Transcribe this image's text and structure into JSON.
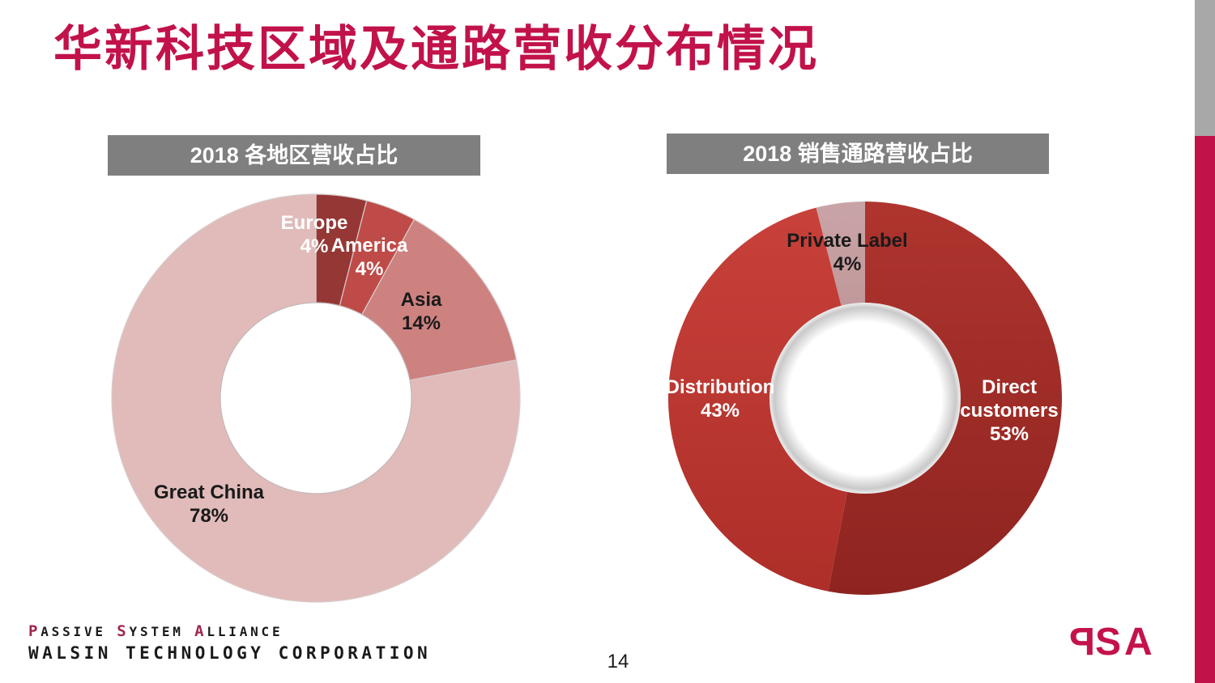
{
  "slide": {
    "title": "华新科技区域及通路营收分布情况",
    "page_number": "14",
    "accent_color": "#C2124A",
    "header_bar_color": "#7F7F7F",
    "edge_stripe_gray": "#A8A8A8",
    "edge_stripe_red": "#C2124A"
  },
  "brand": {
    "line1_parts": [
      {
        "t": "P"
      },
      {
        "t": "ASSIVE "
      },
      {
        "t": "S"
      },
      {
        "t": "YSTEM "
      },
      {
        "t": "A"
      },
      {
        "t": "LLIANCE"
      }
    ],
    "line2": "WALSIN TECHNOLOGY CORPORATION",
    "logo_letters": [
      "P",
      "S",
      "A"
    ],
    "logo_color": "#C4134B",
    "initial_color": "#9E2753"
  },
  "chart_data": [
    {
      "type": "pie",
      "variant": "donut",
      "title": "2018 各地区营收占比",
      "start_angle_deg": 0,
      "direction": "clockwise",
      "slices": [
        {
          "label": "Europe",
          "value": 4,
          "pct": "4%",
          "color": "#953735",
          "text_color": "#ffffff"
        },
        {
          "label": "America",
          "value": 4,
          "pct": "4%",
          "color": "#BE4B47",
          "text_color": "#ffffff"
        },
        {
          "label": "Asia",
          "value": 14,
          "pct": "14%",
          "color": "#CD8280",
          "text_color": "#1a1a1a"
        },
        {
          "label": "Great China",
          "value": 78,
          "pct": "78%",
          "color": "#E0BBBA",
          "text_color": "#1a1a1a"
        }
      ]
    },
    {
      "type": "pie",
      "variant": "donut",
      "title": "2018 销售通路营收占比",
      "start_angle_deg": 0,
      "direction": "clockwise",
      "slices": [
        {
          "label": "Direct customers",
          "value": 53,
          "pct": "53%",
          "color": {
            "top": "#AF342E",
            "bottom": "#8E2420"
          },
          "text_color": "#ffffff"
        },
        {
          "label": "Distribution",
          "value": 43,
          "pct": "43%",
          "color": {
            "top": "#C8413A",
            "bottom": "#AE2E29"
          },
          "text_color": "#ffffff"
        },
        {
          "label": "Private Label",
          "value": 4,
          "pct": "4%",
          "color": {
            "top": "#C9A4A6",
            "bottom": "#B98E91"
          },
          "text_color": "#1a1a1a"
        }
      ]
    }
  ]
}
